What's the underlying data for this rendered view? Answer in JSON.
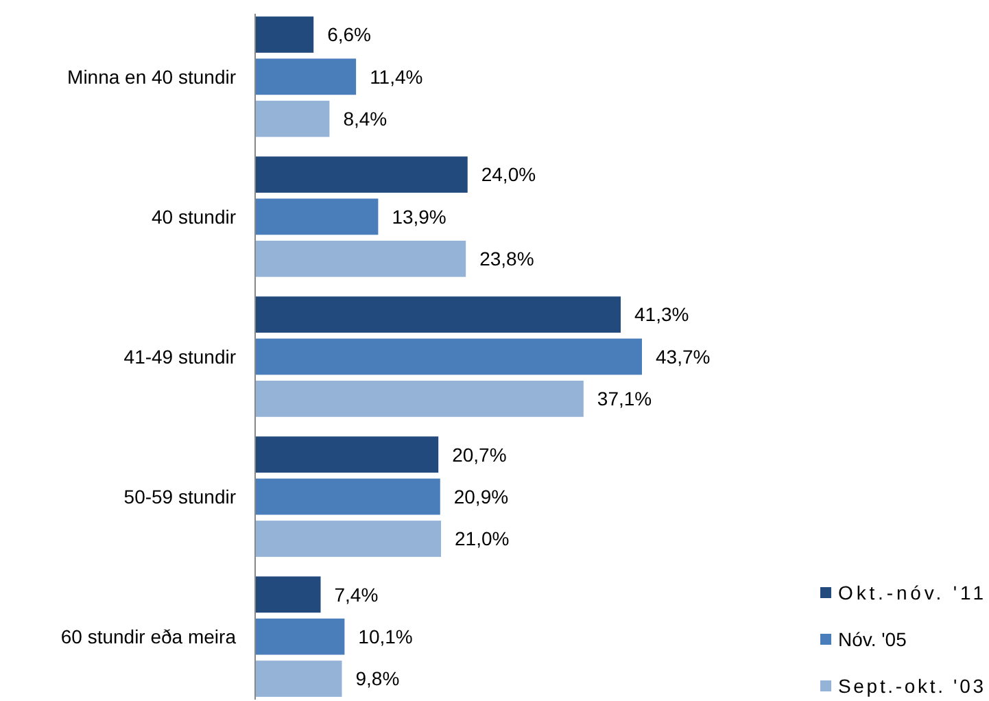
{
  "chart_data": {
    "type": "bar",
    "orientation": "horizontal",
    "categories": [
      "Minna en 40 stundir",
      "40 stundir",
      "41-49 stundir",
      "50-59 stundir",
      "60 stundir eða meira"
    ],
    "series": [
      {
        "name": "Okt.-nóv. '11",
        "color": "#234a7c",
        "values": [
          6.6,
          24.0,
          41.3,
          20.7,
          7.4
        ],
        "value_labels": [
          "6,6%",
          "24,0%",
          "41,3%",
          "20,7%",
          "7,4%"
        ]
      },
      {
        "name": "Nóv. '05",
        "color": "#4a7ebb",
        "values": [
          11.4,
          13.9,
          43.7,
          20.9,
          10.1
        ],
        "value_labels": [
          "11,4%",
          "13,9%",
          "43,7%",
          "20,9%",
          "10,1%"
        ]
      },
      {
        "name": "Sept.-okt. '03",
        "color": "#95b3d7",
        "values": [
          8.4,
          23.8,
          37.1,
          21.0,
          9.8
        ],
        "value_labels": [
          "8,4%",
          "23,8%",
          "37,1%",
          "21,0%",
          "9,8%"
        ]
      }
    ],
    "legend": "bottom right"
  }
}
